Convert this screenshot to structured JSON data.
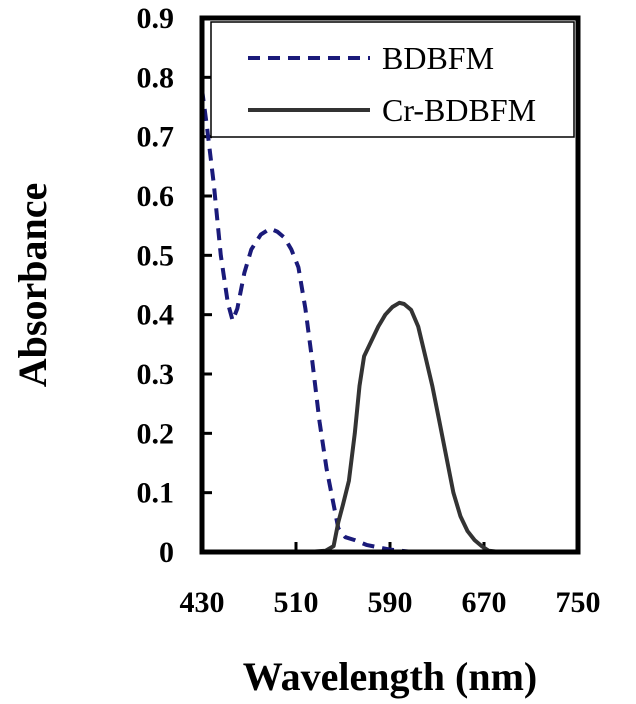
{
  "chart_data": {
    "type": "line",
    "xlabel": "Wavelength (nm)",
    "ylabel": "Absorbance",
    "xlim": [
      430,
      750
    ],
    "ylim": [
      0,
      0.9
    ],
    "xticks": [
      430,
      510,
      590,
      670,
      750
    ],
    "yticks": [
      0,
      0.1,
      0.2,
      0.3,
      0.4,
      0.5,
      0.6,
      0.7,
      0.8,
      0.9
    ],
    "grid": false,
    "legend": "top-right",
    "series": [
      {
        "name": "BDBFM",
        "color": "#1a1a7a",
        "style": "dashed",
        "points": [
          [
            430,
            0.78
          ],
          [
            434,
            0.72
          ],
          [
            440,
            0.62
          ],
          [
            446,
            0.5
          ],
          [
            452,
            0.42
          ],
          [
            456,
            0.39
          ],
          [
            460,
            0.41
          ],
          [
            466,
            0.47
          ],
          [
            472,
            0.51
          ],
          [
            480,
            0.535
          ],
          [
            488,
            0.545
          ],
          [
            494,
            0.54
          ],
          [
            500,
            0.53
          ],
          [
            506,
            0.51
          ],
          [
            512,
            0.48
          ],
          [
            518,
            0.41
          ],
          [
            524,
            0.32
          ],
          [
            530,
            0.22
          ],
          [
            536,
            0.14
          ],
          [
            542,
            0.08
          ],
          [
            546,
            0.04
          ],
          [
            552,
            0.025
          ],
          [
            560,
            0.02
          ],
          [
            570,
            0.012
          ],
          [
            580,
            0.008
          ],
          [
            590,
            0.004
          ],
          [
            600,
            0.002
          ],
          [
            610,
            0.0
          ],
          [
            620,
            0.0
          ]
        ]
      },
      {
        "name": "Cr-BDBFM",
        "color": "#333333",
        "style": "solid",
        "points": [
          [
            500,
            0.0
          ],
          [
            520,
            0.0
          ],
          [
            535,
            0.002
          ],
          [
            542,
            0.01
          ],
          [
            546,
            0.05
          ],
          [
            550,
            0.08
          ],
          [
            555,
            0.12
          ],
          [
            560,
            0.2
          ],
          [
            564,
            0.28
          ],
          [
            568,
            0.33
          ],
          [
            574,
            0.355
          ],
          [
            580,
            0.38
          ],
          [
            586,
            0.4
          ],
          [
            592,
            0.413
          ],
          [
            598,
            0.42
          ],
          [
            602,
            0.418
          ],
          [
            608,
            0.408
          ],
          [
            614,
            0.38
          ],
          [
            620,
            0.33
          ],
          [
            626,
            0.28
          ],
          [
            632,
            0.22
          ],
          [
            638,
            0.16
          ],
          [
            644,
            0.1
          ],
          [
            650,
            0.06
          ],
          [
            656,
            0.035
          ],
          [
            662,
            0.02
          ],
          [
            668,
            0.01
          ],
          [
            674,
            0.002
          ],
          [
            684,
            0.0
          ]
        ]
      }
    ]
  }
}
